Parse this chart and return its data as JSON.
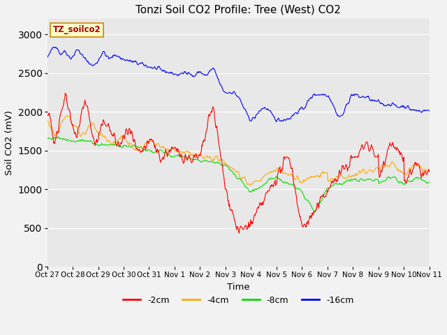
{
  "title": "Tonzi Soil CO2 Profile: Tree (West) CO2",
  "xlabel": "Time",
  "ylabel": "Soil CO2 (mV)",
  "ylim": [
    0,
    3200
  ],
  "yticks": [
    0,
    500,
    1000,
    1500,
    2000,
    2500,
    3000
  ],
  "legend_labels": [
    "-2cm",
    "-4cm",
    "-8cm",
    "-16cm"
  ],
  "legend_colors": [
    "#ff0000",
    "#ffaa00",
    "#00dd00",
    "#0000ff"
  ],
  "plot_bg": "#e8e8e8",
  "fig_bg": "#f2f2f2",
  "label_box_color": "#ffffcc",
  "label_box_edge": "#cc8800",
  "label_text": "TZ_soilco2",
  "xtick_labels": [
    "Oct 27",
    "Oct 28",
    "Oct 29",
    "Oct 30",
    "Oct 31",
    "Nov 1",
    "Nov 2",
    "Nov 3",
    "Nov 4",
    "Nov 5",
    "Nov 6",
    "Nov 7",
    "Nov 8",
    "Nov 9",
    "Nov 10",
    "Nov 11"
  ],
  "n_days": 15,
  "pts_per_day": 48
}
